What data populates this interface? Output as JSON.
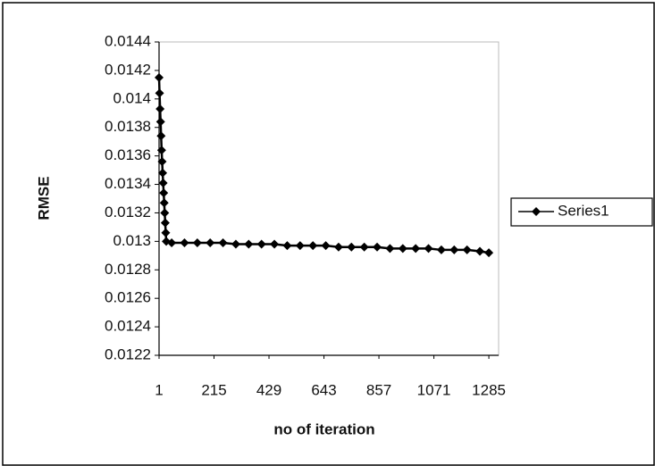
{
  "chart_data": {
    "type": "line",
    "x_label": "no of iteration",
    "y_label": "RMSE",
    "xlim": [
      1,
      1323
    ],
    "xticks": [
      1,
      215,
      429,
      643,
      857,
      1071,
      1285
    ],
    "ylim": [
      0.0122,
      0.0144
    ],
    "yticks": [
      0.0122,
      0.0124,
      0.0126,
      0.0128,
      0.013,
      0.0132,
      0.0134,
      0.0136,
      0.0138,
      0.014,
      0.0142,
      0.0144
    ],
    "legend": "right",
    "series": [
      {
        "name": "Series1",
        "color": "#000000",
        "marker": "diamond",
        "x": [
          1,
          3,
          5,
          7,
          9,
          11,
          13,
          15,
          17,
          19,
          21,
          23,
          25,
          27,
          29,
          50,
          100,
          150,
          200,
          250,
          300,
          350,
          400,
          450,
          500,
          550,
          600,
          650,
          700,
          750,
          800,
          850,
          900,
          950,
          1000,
          1050,
          1100,
          1150,
          1200,
          1250,
          1285
        ],
        "values": [
          0.01415,
          0.01404,
          0.01393,
          0.01384,
          0.01374,
          0.01364,
          0.01356,
          0.01348,
          0.01341,
          0.01334,
          0.01327,
          0.0132,
          0.01313,
          0.01306,
          0.013,
          0.01299,
          0.01299,
          0.01299,
          0.01299,
          0.01299,
          0.01298,
          0.01298,
          0.01298,
          0.01298,
          0.01297,
          0.01297,
          0.01297,
          0.01297,
          0.01296,
          0.01296,
          0.01296,
          0.01296,
          0.01295,
          0.01295,
          0.01295,
          0.01295,
          0.01294,
          0.01294,
          0.01294,
          0.01293,
          0.01292
        ]
      }
    ]
  }
}
